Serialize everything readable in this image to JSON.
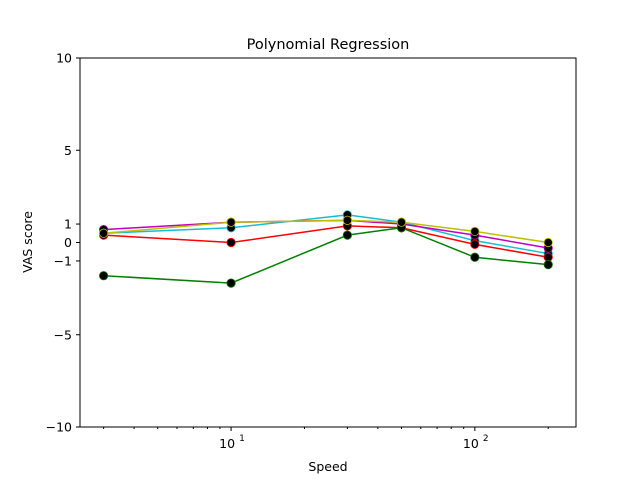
{
  "chart_data": {
    "type": "line",
    "title": "Polynomial Regression",
    "xlabel": "Speed",
    "ylabel": "VAS score",
    "xscale": "log",
    "xlim": [
      2.4,
      260
    ],
    "ylim": [
      -10,
      10
    ],
    "x": [
      3,
      10,
      30,
      50,
      100,
      200
    ],
    "yticks": [
      -10,
      -5,
      -1,
      0,
      1,
      5,
      10
    ],
    "yticklabels": [
      "−10",
      "−5",
      "−1",
      "0",
      "1",
      "5",
      "10"
    ],
    "xticks": [
      {
        "value": 10,
        "base": "10",
        "exp": "1"
      },
      {
        "value": 100,
        "base": "10",
        "exp": "2"
      }
    ],
    "grid": false,
    "legend": "none",
    "marker_color": "#000000",
    "series": [
      {
        "color": "#17becf",
        "values": [
          0.5,
          0.8,
          1.5,
          1.1,
          0.1,
          -0.6
        ]
      },
      {
        "color": "#bf00bf",
        "values": [
          0.7,
          1.1,
          1.2,
          1.0,
          0.4,
          -0.3
        ]
      },
      {
        "color": "#ff0000",
        "values": [
          0.4,
          0.0,
          0.9,
          0.8,
          -0.1,
          -0.8
        ]
      },
      {
        "color": "#008000",
        "values": [
          -1.8,
          -2.2,
          0.4,
          0.8,
          -0.8,
          -1.2
        ]
      },
      {
        "color": "#bfbf00",
        "values": [
          0.5,
          1.1,
          1.2,
          1.1,
          0.6,
          0.0
        ]
      }
    ]
  }
}
